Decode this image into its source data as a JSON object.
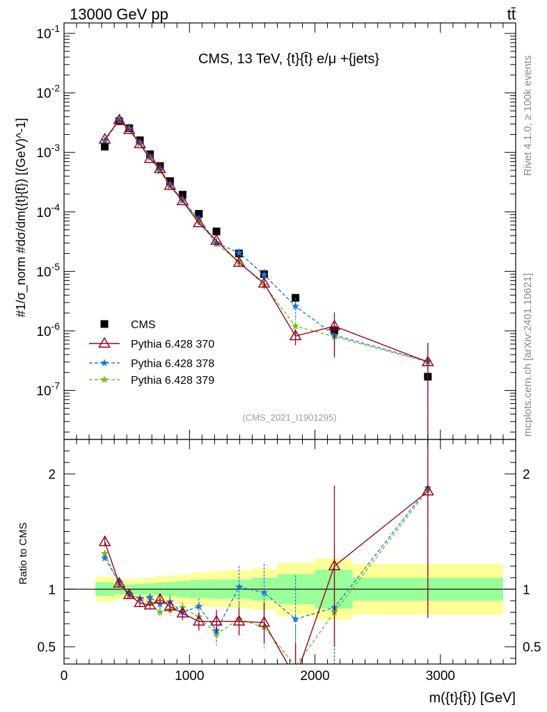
{
  "header": {
    "left": "13000 GeV pp",
    "right": "tt̄"
  },
  "side": {
    "rivet": "Rivet 4.1.0, ≥ 100k events",
    "mcplots": "mcplots.cern.ch [arXiv:2401.10621]"
  },
  "colors": {
    "cms": "#000000",
    "p370": "#990022",
    "p378": "#1f78d4",
    "p379": "#7cba1e",
    "band_inner": "#99ff99",
    "band_outer": "#ffff99"
  },
  "chart_data": {
    "type": "scatter",
    "title": "CMS, 13 TeV, {t}{t̄} e/μ +{jets}",
    "analysis": "(CMS_2021_I1901295)",
    "xlabel": "m({t}{t̄}) [GeV]",
    "ylabel": "#1/σ_norm #dσ/dm({t}{t̄}) [(GeV)^-1]",
    "ylabel_ratio": "Ratio to CMS",
    "xlim": [
      0,
      3600
    ],
    "ylim_log": [
      1.5e-08,
      0.15
    ],
    "ylim_ratio": [
      0.35,
      2.3
    ],
    "x_ticks": [
      "0",
      "1000",
      "2000",
      "3000"
    ],
    "y_ticks": [
      "10^-7",
      "10^-6",
      "10^-5",
      "10^-4",
      "10^-3",
      "10^-2",
      "10^-1"
    ],
    "ratio_ticks": [
      "0.5",
      "1",
      "2"
    ],
    "legend": [
      "CMS",
      "Pythia 6.428 370",
      "Pythia 6.428 378",
      "Pythia 6.428 379"
    ],
    "x": [
      325,
      440,
      520,
      605,
      685,
      765,
      845,
      945,
      1075,
      1215,
      1395,
      1595,
      1845,
      2155,
      2900
    ],
    "bins": [
      [
        250,
        400
      ],
      [
        400,
        480
      ],
      [
        480,
        560
      ],
      [
        560,
        640
      ],
      [
        640,
        720
      ],
      [
        720,
        800
      ],
      [
        800,
        900
      ],
      [
        900,
        1000
      ],
      [
        1000,
        1150
      ],
      [
        1150,
        1300
      ],
      [
        1300,
        1500
      ],
      [
        1500,
        1700
      ],
      [
        1700,
        2000
      ],
      [
        2000,
        2300
      ],
      [
        2300,
        3500
      ]
    ],
    "series": [
      {
        "name": "CMS",
        "values": [
          0.00125,
          0.00335,
          0.00255,
          0.0016,
          0.00093,
          0.00059,
          0.00033,
          0.000195,
          9.3e-05,
          4.7e-05,
          2e-05,
          9e-06,
          3.6e-06,
          1e-06,
          1.7e-07
        ],
        "unc_inner": [
          0.06,
          0.045,
          0.04,
          0.045,
          0.05,
          0.055,
          0.06,
          0.07,
          0.08,
          0.085,
          0.085,
          0.1,
          0.13,
          0.17,
          0.1
        ],
        "unc_outer": [
          0.11,
          0.09,
          0.085,
          0.09,
          0.1,
          0.11,
          0.12,
          0.13,
          0.145,
          0.155,
          0.165,
          0.18,
          0.23,
          0.265,
          0.22
        ]
      },
      {
        "name": "Pythia 6.428 370",
        "values": [
          0.00165,
          0.0035,
          0.0024,
          0.00138,
          0.00078,
          0.00053,
          0.000275,
          0.000152,
          6.5e-05,
          3.3e-05,
          1.4e-05,
          6.3e-06,
          8.2e-07,
          1.2e-06,
          3e-07
        ],
        "ratio": [
          1.41,
          1.05,
          0.95,
          0.88,
          0.86,
          0.91,
          0.85,
          0.79,
          0.72,
          0.72,
          0.72,
          0.71,
          0.23,
          1.2,
          1.85
        ],
        "ratio_err": [
          0.04,
          0.03,
          0.03,
          0.03,
          0.03,
          0.04,
          0.05,
          0.06,
          0.08,
          0.1,
          0.12,
          0.18,
          0.3,
          0.7,
          1.1
        ]
      },
      {
        "name": "Pythia 6.428 378",
        "values": [
          0.00155,
          0.00355,
          0.0025,
          0.00145,
          0.00087,
          0.00052,
          0.00029,
          0.000155,
          7.7e-05,
          3e-05,
          2.05e-05,
          8.8e-06,
          2.6e-06,
          8.5e-07,
          3.1e-07
        ],
        "ratio": [
          1.27,
          1.06,
          0.96,
          0.92,
          0.93,
          0.87,
          0.89,
          0.8,
          0.85,
          0.64,
          1.02,
          0.97,
          0.74,
          0.84,
          1.88
        ],
        "ratio_err": [
          0.03,
          0.03,
          0.03,
          0.03,
          0.03,
          0.04,
          0.05,
          0.05,
          0.07,
          0.1,
          0.18,
          0.25,
          0.38,
          0.55,
          1.0
        ]
      },
      {
        "name": "Pythia 6.428 379",
        "values": [
          0.0016,
          0.00345,
          0.00245,
          0.00142,
          0.00081,
          0.00048,
          0.00027,
          0.00016,
          7e-05,
          2.9e-05,
          1.45e-05,
          5.9e-06,
          1.2e-06,
          8e-07,
          3e-07
        ],
        "ratio": [
          1.31,
          1.04,
          0.95,
          0.92,
          0.88,
          0.8,
          0.82,
          0.84,
          0.76,
          0.61,
          0.74,
          0.67,
          0.33,
          0.8,
          1.86
        ],
        "ratio_err": [
          0.03,
          0.03,
          0.03,
          0.03,
          0.03,
          0.04,
          0.05,
          0.05,
          0.07,
          0.1,
          0.14,
          0.2,
          0.35,
          0.5,
          1.0
        ]
      }
    ]
  }
}
